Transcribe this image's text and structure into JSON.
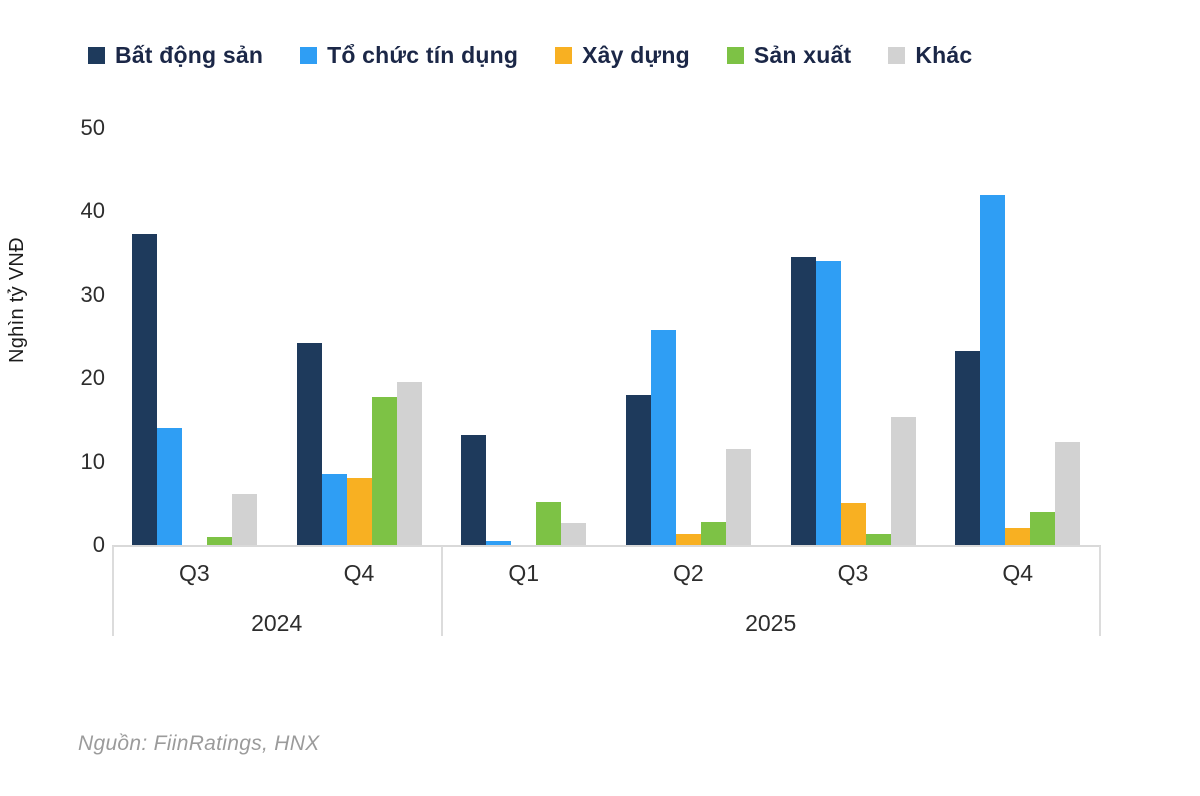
{
  "source": "Nguồn: FiinRatings, HNX",
  "chart_data": {
    "type": "bar",
    "title": "",
    "xlabel": "",
    "ylabel": "Nghìn tỷ VNĐ",
    "ylim": [
      0,
      50
    ],
    "y_ticks": [
      50,
      40,
      30,
      20,
      10,
      0
    ],
    "grid": false,
    "legend_position": "top",
    "categories": [
      "2024 Q3",
      "2024 Q4",
      "2025 Q1",
      "2025 Q2",
      "2025 Q3",
      "2025 Q4"
    ],
    "x_groups": {
      "quarters": [
        "Q3",
        "Q4",
        "Q1",
        "Q2",
        "Q3",
        "Q4"
      ],
      "years": [
        {
          "label": "2024",
          "groups": 2
        },
        {
          "label": "2025",
          "groups": 4
        }
      ]
    },
    "series": [
      {
        "name": "Bất động sản",
        "color": "#1e3a5c",
        "values": [
          37.3,
          24.2,
          13.2,
          18.0,
          34.5,
          23.3
        ]
      },
      {
        "name": "Tổ chức tín dụng",
        "color": "#2f9ef4",
        "values": [
          14.0,
          8.5,
          0.5,
          25.8,
          34.0,
          42.0
        ]
      },
      {
        "name": "Xây dựng",
        "color": "#f8b022",
        "values": [
          0,
          8.0,
          0,
          1.3,
          5.0,
          2.0
        ]
      },
      {
        "name": "Sản xuất",
        "color": "#7dc245",
        "values": [
          1.0,
          17.8,
          5.1,
          2.8,
          1.3,
          4.0
        ]
      },
      {
        "name": "Khác",
        "color": "#d2d2d2",
        "values": [
          6.1,
          19.5,
          2.6,
          11.5,
          15.4,
          12.3
        ]
      }
    ]
  }
}
